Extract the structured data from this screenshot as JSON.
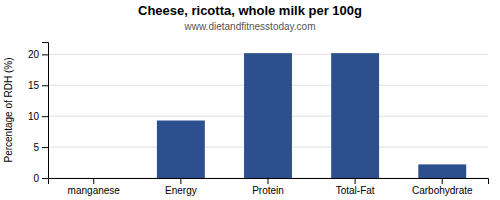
{
  "chart_data": {
    "type": "bar",
    "title": "Cheese, ricotta, whole milk per 100g",
    "subtitle": "www.dietandfitnesstoday.com",
    "categories": [
      "manganese",
      "Energy",
      "Protein",
      "Total-Fat",
      "Carbohydrate"
    ],
    "values": [
      0,
      9.3,
      20.2,
      20.2,
      2.2
    ],
    "color": "#2d4f8e",
    "ylabel": "Percentage of RDH (%)",
    "ylim": [
      0,
      22
    ],
    "yticks": [
      0,
      5,
      10,
      15,
      20
    ],
    "grid": true
  }
}
